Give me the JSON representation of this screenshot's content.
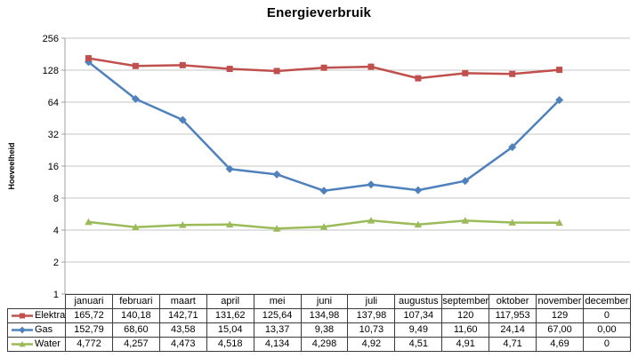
{
  "chart_data": {
    "type": "line",
    "title": "Energieverbruik",
    "ylabel": "Hoeveelheid",
    "y_scale": "log2",
    "ylim": [
      1,
      256
    ],
    "yticks": [
      256,
      128,
      64,
      32,
      16,
      8,
      4,
      2,
      1
    ],
    "grid": "horizontal",
    "legend_position": "data-table-left",
    "categories": [
      "januari",
      "februari",
      "maart",
      "april",
      "mei",
      "juni",
      "juli",
      "augustus",
      "september",
      "oktober",
      "november",
      "december"
    ],
    "series": [
      {
        "name": "Elektra",
        "color": "#C0504D",
        "marker": "square",
        "values": [
          165.72,
          140.18,
          142.71,
          131.62,
          125.64,
          134.98,
          137.98,
          107.34,
          120,
          117.953,
          129,
          0
        ],
        "display": [
          "165,72",
          "140,18",
          "142,71",
          "131,62",
          "125,64",
          "134,98",
          "137,98",
          "107,34",
          "120",
          "117,953",
          "129",
          "0"
        ]
      },
      {
        "name": "Gas",
        "color": "#4F81BD",
        "marker": "diamond",
        "values": [
          152.79,
          68.6,
          43.58,
          15.04,
          13.37,
          9.38,
          10.73,
          9.49,
          11.6,
          24.14,
          67.0,
          0
        ],
        "display": [
          "152,79",
          "68,60",
          "43,58",
          "15,04",
          "13,37",
          "9,38",
          "10,73",
          "9,49",
          "11,60",
          "24,14",
          "67,00",
          "0,00"
        ]
      },
      {
        "name": "Water",
        "color": "#9BBB59",
        "marker": "triangle",
        "values": [
          4.772,
          4.257,
          4.473,
          4.518,
          4.134,
          4.298,
          4.92,
          4.51,
          4.91,
          4.71,
          4.69,
          0
        ],
        "display": [
          "4,772",
          "4,257",
          "4,473",
          "4,518",
          "4,134",
          "4,298",
          "4,92",
          "4,51",
          "4,91",
          "4,71",
          "4,69",
          "0"
        ]
      }
    ]
  },
  "colors": {
    "background": "#FFFFFF",
    "text": "#000000",
    "gridline": "#C6C6C6",
    "axis": "#A0A0A0",
    "table_border": "#3B3B3B"
  }
}
